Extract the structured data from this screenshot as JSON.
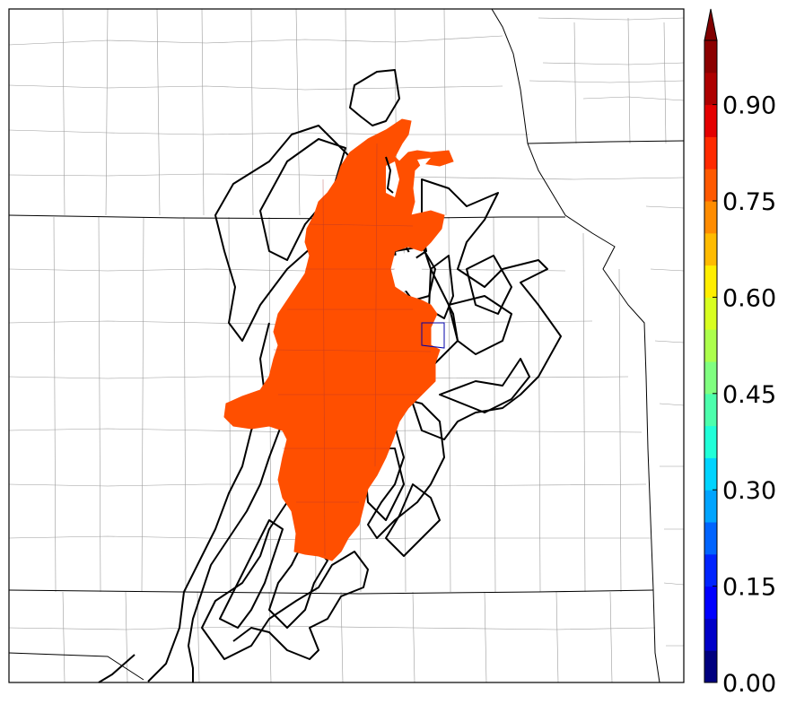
{
  "map": {
    "fill_color": "#ff4f00",
    "contour_color": "#000000",
    "boundary_color": "#000000",
    "county_color": "#999999"
  },
  "colorbar": {
    "levels": [
      0.0,
      0.05,
      0.1,
      0.15,
      0.2,
      0.25,
      0.3,
      0.35,
      0.4,
      0.45,
      0.5,
      0.55,
      0.6,
      0.65,
      0.7,
      0.75,
      0.8,
      0.85,
      0.9,
      0.95,
      1.0
    ],
    "colors": [
      "#00007f",
      "#0000c8",
      "#0000ff",
      "#0024ff",
      "#0064ff",
      "#00a4ff",
      "#00d4ff",
      "#20ffd8",
      "#4cffac",
      "#80ff80",
      "#acff4c",
      "#d8ff20",
      "#ffee00",
      "#ffbb00",
      "#ff8c00",
      "#ff5900",
      "#ff2a00",
      "#e40000",
      "#ad0000",
      "#8b0000"
    ],
    "extend_color": "#800000",
    "tick_labels": [
      "0.00",
      "0.15",
      "0.30",
      "0.45",
      "0.60",
      "0.75",
      "0.90"
    ],
    "tick_values": [
      0.0,
      0.15,
      0.3,
      0.45,
      0.6,
      0.75,
      0.9
    ]
  }
}
